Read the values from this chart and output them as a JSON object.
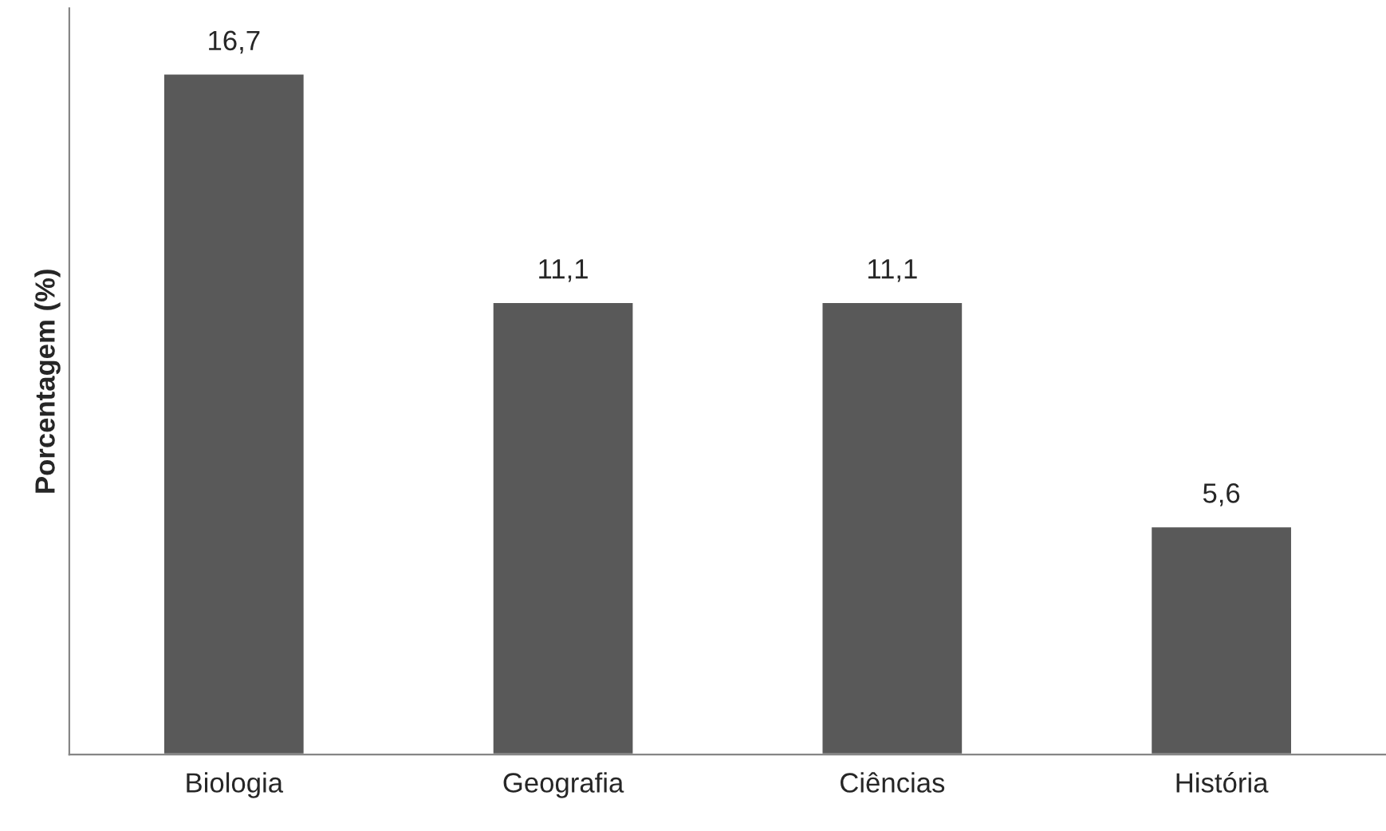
{
  "chart_data": {
    "type": "bar",
    "ylabel": "Porcentagem (%)",
    "categories": [
      "Biologia",
      "Geografia",
      "Ciências",
      "História"
    ],
    "values": [
      16.7,
      11.1,
      11.1,
      5.6
    ],
    "value_labels": [
      "16,7",
      "11,1",
      "11,1",
      "5,6"
    ],
    "color": "#595959",
    "ylim": [
      0,
      18.3
    ],
    "tick_labels": "x",
    "grid": false,
    "legend": false
  }
}
